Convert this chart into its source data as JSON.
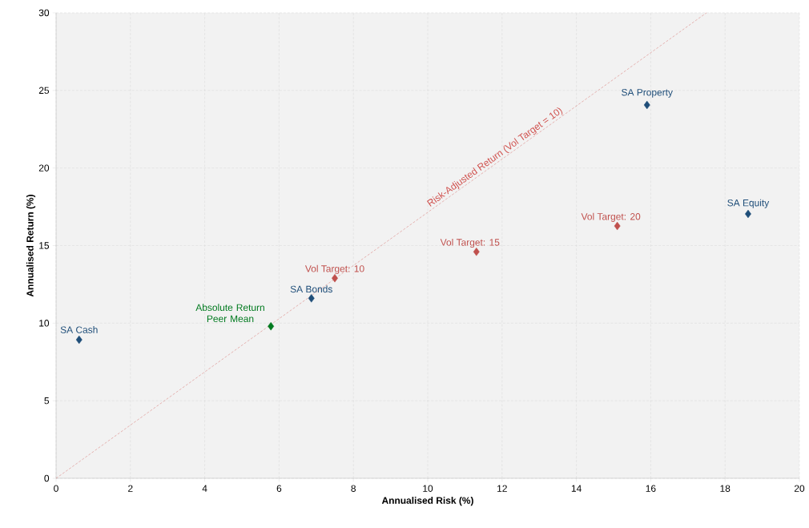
{
  "chart_data": {
    "type": "scatter",
    "xlabel": "Annualised Risk (%)",
    "ylabel": "Annualised Return (%)",
    "xlim": [
      0,
      20
    ],
    "xticks": [
      0,
      2,
      4,
      6,
      8,
      10,
      12,
      14,
      16,
      18,
      20
    ],
    "ylim": [
      0,
      30
    ],
    "yticks": [
      0,
      5,
      10,
      15,
      20,
      25,
      30
    ],
    "grid": true,
    "marker": "diamond",
    "series": [
      {
        "name": "Risk-Adjusted Return (Vol Target = 10)",
        "type": "line",
        "line_style": "dashed",
        "marker": "none",
        "color": "#d0504d",
        "x": [
          0,
          17.5
        ],
        "values": [
          0,
          30
        ]
      },
      {
        "name": "SA Cash",
        "color": "#1f4e79",
        "x": [
          0.62
        ],
        "values": [
          8.93
        ]
      },
      {
        "name": "Absolute Return Peer Mean",
        "color": "#007a1f",
        "x": [
          5.78
        ],
        "values": [
          9.8
        ]
      },
      {
        "name": "SA Bonds",
        "color": "#1f4e79",
        "x": [
          6.87
        ],
        "values": [
          11.6
        ]
      },
      {
        "name": "Vol Target: 10",
        "color": "#c0504d",
        "x": [
          7.5
        ],
        "values": [
          12.9
        ]
      },
      {
        "name": "Vol Target: 15",
        "color": "#c0504d",
        "x": [
          11.31
        ],
        "values": [
          14.6
        ]
      },
      {
        "name": "Vol Target: 20",
        "color": "#c0504d",
        "x": [
          15.1
        ],
        "values": [
          16.26
        ]
      },
      {
        "name": "SA Property",
        "color": "#1f4e79",
        "x": [
          15.9
        ],
        "values": [
          24.06
        ]
      },
      {
        "name": "SA Equity",
        "color": "#1f4e79",
        "x": [
          18.62
        ],
        "values": [
          17.04
        ]
      }
    ]
  }
}
